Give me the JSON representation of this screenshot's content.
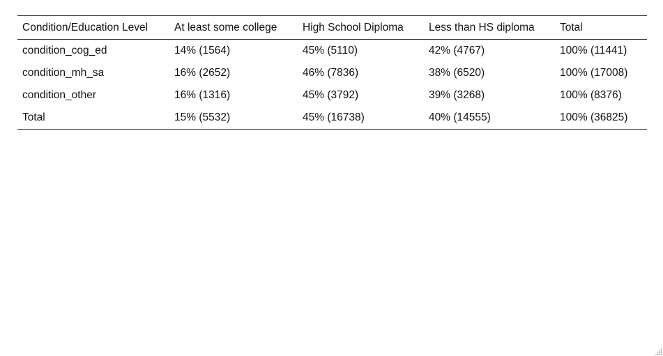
{
  "table": {
    "headers": [
      "Condition/Education Level",
      "At least some college",
      "High School Diploma",
      "Less than HS diploma",
      "Total"
    ],
    "rows": [
      [
        "condition_cog_ed",
        "14% (1564)",
        "45% (5110)",
        "42% (4767)",
        "100% (11441)"
      ],
      [
        "condition_mh_sa",
        "16% (2652)",
        "46% (7836)",
        "38% (6520)",
        "100% (17008)"
      ],
      [
        "condition_other",
        "16% (1316)",
        "45% (3792)",
        "39% (3268)",
        "100% (8376)"
      ],
      [
        "Total",
        "15% (5532)",
        "45% (16738)",
        "40% (14555)",
        "100% (36825)"
      ]
    ]
  },
  "colors": {
    "rule": "#333333",
    "text": "#111111",
    "background": "#ffffff"
  },
  "icons": {
    "resize_grip": "resize-grip-icon"
  }
}
